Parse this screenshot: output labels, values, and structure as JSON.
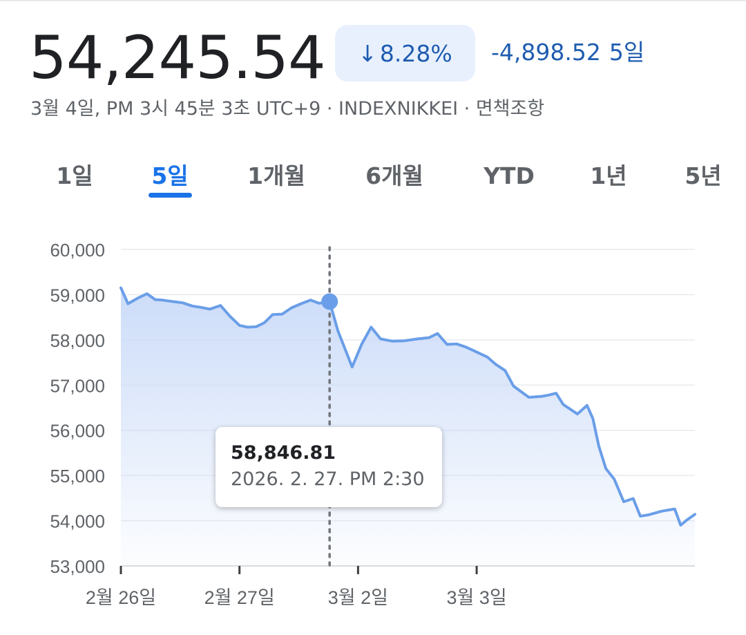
{
  "header": {
    "price": "54,245.54",
    "change_arrow": "↓",
    "change_percent": "8.28%",
    "change_abs": "-4,898.52",
    "change_period": "5일",
    "meta": "3월 4일, PM 3시 45분 3초 UTC+9 · INDEXNIKKEI · 면책조항"
  },
  "tabs": [
    {
      "label": "1일",
      "active": false
    },
    {
      "label": "5일",
      "active": true
    },
    {
      "label": "1개월",
      "active": false
    },
    {
      "label": "6개월",
      "active": false
    },
    {
      "label": "YTD",
      "active": false
    },
    {
      "label": "1년",
      "active": false
    },
    {
      "label": "5년",
      "active": false
    }
  ],
  "colors": {
    "accent": "#1a73e8",
    "change": "#1f5cb0",
    "line": "#6a9ee8",
    "fill_top": "#c9daf8",
    "grid": "#e8eaed"
  },
  "tooltip": {
    "value": "58,846.81",
    "date": "2026. 2. 27. PM 2:30"
  },
  "chart_data": {
    "type": "area",
    "title": "",
    "xlabel": "",
    "ylabel": "",
    "ylim": [
      53000,
      60000
    ],
    "yticks": [
      "60,000",
      "59,000",
      "58,000",
      "57,000",
      "56,000",
      "55,000",
      "54,000",
      "53,000"
    ],
    "grid": true,
    "xlim": [
      0,
      4.84
    ],
    "xticks": [
      {
        "x": 0,
        "label": "2월 26일"
      },
      {
        "x": 1,
        "label": "2월 27일"
      },
      {
        "x": 2,
        "label": "3월 2일"
      },
      {
        "x": 3,
        "label": "3월 3일"
      }
    ],
    "highlight": {
      "x": 1.76,
      "y": 58846.81
    },
    "series": [
      {
        "x": [
          0,
          0.06,
          0.14,
          0.22,
          0.29,
          0.35,
          0.43,
          0.52,
          0.6,
          0.67,
          0.75,
          0.84,
          0.92,
          1.0,
          1.07,
          1.14,
          1.21,
          1.28,
          1.36,
          1.44,
          1.52,
          1.6,
          1.67,
          1.73,
          1.76,
          1.83,
          1.95,
          2.03,
          2.11,
          2.19,
          2.29,
          2.39,
          2.5,
          2.6,
          2.67,
          2.75,
          2.83,
          2.91,
          3.0,
          3.09,
          3.16,
          3.24,
          3.31,
          3.44,
          3.55,
          3.61,
          3.67,
          3.73,
          3.85,
          3.93,
          3.98,
          4.03,
          4.09,
          4.16,
          4.24,
          4.32,
          4.38,
          4.45,
          4.56,
          4.67,
          4.72,
          4.77,
          4.84
        ],
        "y": [
          59150,
          58800,
          58920,
          59020,
          58890,
          58880,
          58850,
          58820,
          58750,
          58720,
          58680,
          58760,
          58520,
          58320,
          58280,
          58290,
          58380,
          58560,
          58570,
          58710,
          58800,
          58880,
          58810,
          58830,
          58846.81,
          58200,
          57400,
          57900,
          58280,
          58020,
          57970,
          57980,
          58020,
          58050,
          58140,
          57900,
          57910,
          57840,
          57730,
          57620,
          57460,
          57320,
          56980,
          56730,
          56750,
          56780,
          56820,
          56570,
          56360,
          56550,
          56260,
          55650,
          55150,
          54920,
          54420,
          54490,
          54100,
          54130,
          54210,
          54260,
          53900,
          54010,
          54140
        ]
      }
    ]
  }
}
